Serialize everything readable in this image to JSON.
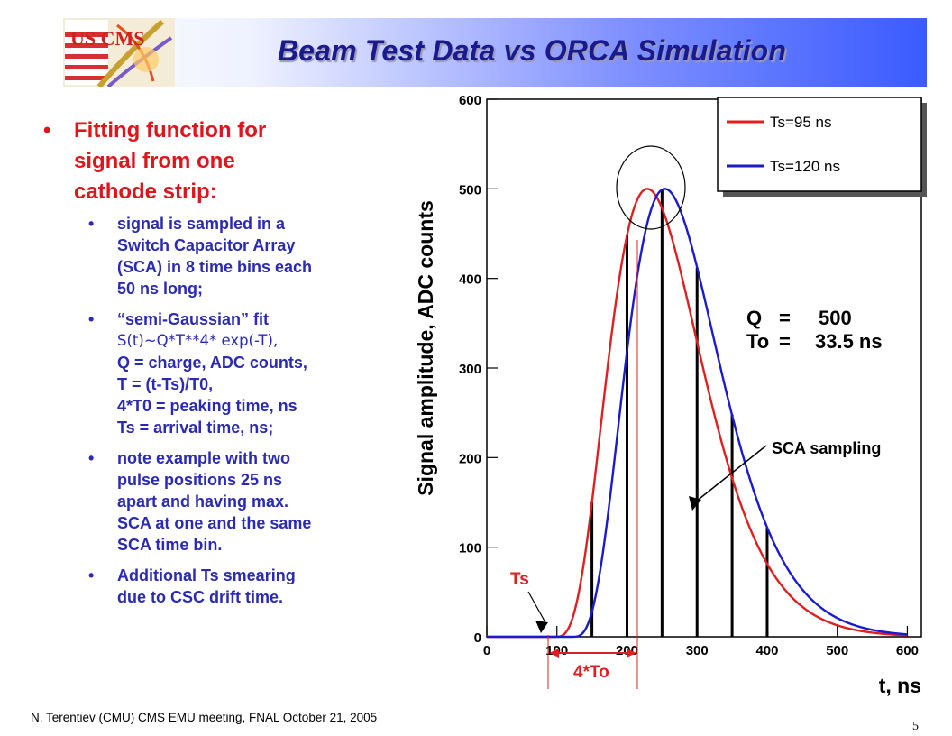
{
  "slide": {
    "title": "Beam Test Data vs ORCA Simulation",
    "logo_text": "US CMS",
    "footer": "N. Terentiev  (CMU)  CMS EMU meeting,  FNAL  October 21, 2005",
    "page_number": "5",
    "colors": {
      "title": "#1a1a8c",
      "bullet_main": "#e0151b",
      "bullet_sub": "#2a2ab4"
    }
  },
  "bullets": {
    "main_marker": "•",
    "main": [
      "Fitting function for",
      "signal from one",
      "cathode strip:"
    ],
    "sub_marker": "•",
    "sub": [
      {
        "lines": [
          "signal is sampled in a",
          "Switch Capacitor Array",
          "(SCA) in 8 time bins each",
          "50 ns long;"
        ]
      },
      {
        "lines": [
          "“semi-Gaussian”  fit",
          "S(t)~Q*T**4* exp(-T),",
          "Q = charge, ADC counts,",
          "T = (t-Ts)/T0,",
          "4*T0 = peaking time, ns",
          "Ts = arrival time, ns;"
        ]
      },
      {
        "lines": [
          "note example with two",
          "pulse positions  25 ns",
          "apart and having max.",
          "SCA at one and the same",
          "SCA time bin."
        ]
      },
      {
        "lines": [
          "Additional Ts smearing",
          "due to CSC drift time."
        ]
      }
    ]
  },
  "chart_data": {
    "type": "line",
    "xlabel": "t, ns",
    "ylabel": "Signal amplitude, ADC counts",
    "xlim": [
      0,
      620
    ],
    "ylim": [
      0,
      600
    ],
    "x_ticks": [
      0,
      100,
      200,
      300,
      400,
      500,
      600
    ],
    "y_ticks": [
      0,
      100,
      200,
      300,
      400,
      500,
      600
    ],
    "series": [
      {
        "name": "Ts=95 ns",
        "color": "#e02020",
        "Q": 500,
        "T0": 33.5,
        "Ts": 95
      },
      {
        "name": "Ts=120 ns",
        "color": "#1a1ad0",
        "Q": 500,
        "T0": 33.5,
        "Ts": 120
      }
    ],
    "sca_sampling": {
      "label": "SCA sampling",
      "x": [
        150,
        200,
        250,
        300,
        350,
        400
      ],
      "values": [
        150,
        448,
        500,
        412,
        248,
        122
      ]
    },
    "params_text": {
      "q_label": "Q",
      "q_value": "500",
      "to_label": "To",
      "to_value": "33.5 ns",
      "eq": "="
    },
    "annotations": {
      "ts": "Ts",
      "peaking": "4*To"
    },
    "legend_position": "top-right",
    "grid": false
  }
}
